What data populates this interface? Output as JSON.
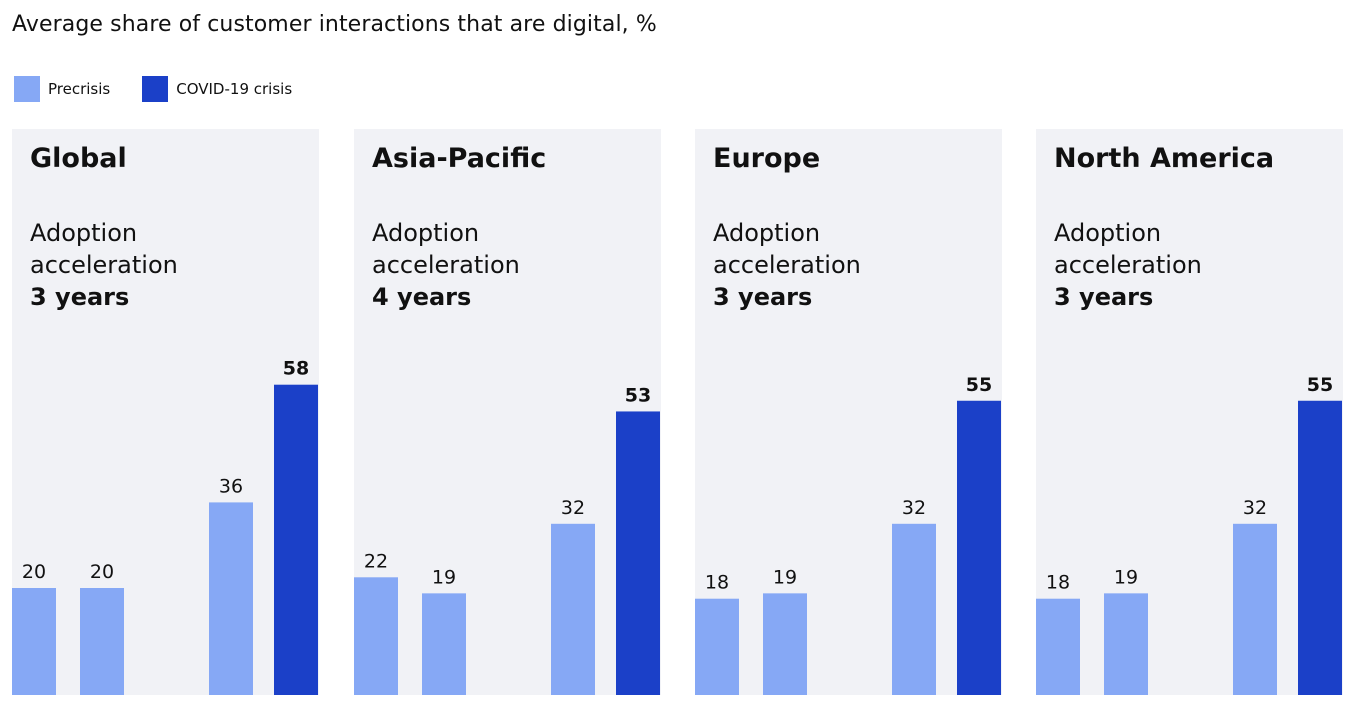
{
  "header": {
    "title": "Average share of customer interactions that are digital, %"
  },
  "legend": [
    {
      "label": "Precrisis",
      "color": "#86a8f5"
    },
    {
      "label": "COVID-19 crisis",
      "color": "#1b40c8"
    }
  ],
  "panels": [
    {
      "title": "Global",
      "sub_line1": "Adoption",
      "sub_line2": "acceleration",
      "sub_line3": "3 years"
    },
    {
      "title": "Asia-Pacific",
      "sub_line1": "Adoption",
      "sub_line2": "acceleration",
      "sub_line3": "4 years"
    },
    {
      "title": "Europe",
      "sub_line1": "Adoption",
      "sub_line2": "acceleration",
      "sub_line3": "3 years"
    },
    {
      "title": "North America",
      "sub_line1": "Adoption",
      "sub_line2": "acceleration",
      "sub_line3": "3 years"
    }
  ],
  "chart_data": [
    {
      "type": "bar",
      "title": "Global",
      "categories": [
        "",
        "",
        "",
        ""
      ],
      "series": [
        {
          "values": [
            20,
            20,
            36,
            58
          ],
          "colors": [
            "#86a8f5",
            "#86a8f5",
            "#86a8f5",
            "#1b40c8"
          ]
        }
      ],
      "ylim": [
        0,
        80
      ]
    },
    {
      "type": "bar",
      "title": "Asia-Pacific",
      "categories": [
        "",
        "",
        "",
        ""
      ],
      "series": [
        {
          "values": [
            22,
            19,
            32,
            53
          ],
          "colors": [
            "#86a8f5",
            "#86a8f5",
            "#86a8f5",
            "#1b40c8"
          ]
        }
      ],
      "ylim": [
        0,
        80
      ]
    },
    {
      "type": "bar",
      "title": "Europe",
      "categories": [
        "",
        "",
        "",
        ""
      ],
      "series": [
        {
          "values": [
            18,
            19,
            32,
            55
          ],
          "colors": [
            "#86a8f5",
            "#86a8f5",
            "#86a8f5",
            "#1b40c8"
          ]
        }
      ],
      "ylim": [
        0,
        80
      ]
    },
    {
      "type": "bar",
      "title": "North America",
      "categories": [
        "",
        "",
        "",
        ""
      ],
      "series": [
        {
          "values": [
            18,
            19,
            32,
            55
          ],
          "colors": [
            "#86a8f5",
            "#86a8f5",
            "#86a8f5",
            "#1b40c8"
          ]
        }
      ],
      "ylim": [
        0,
        80
      ]
    }
  ]
}
